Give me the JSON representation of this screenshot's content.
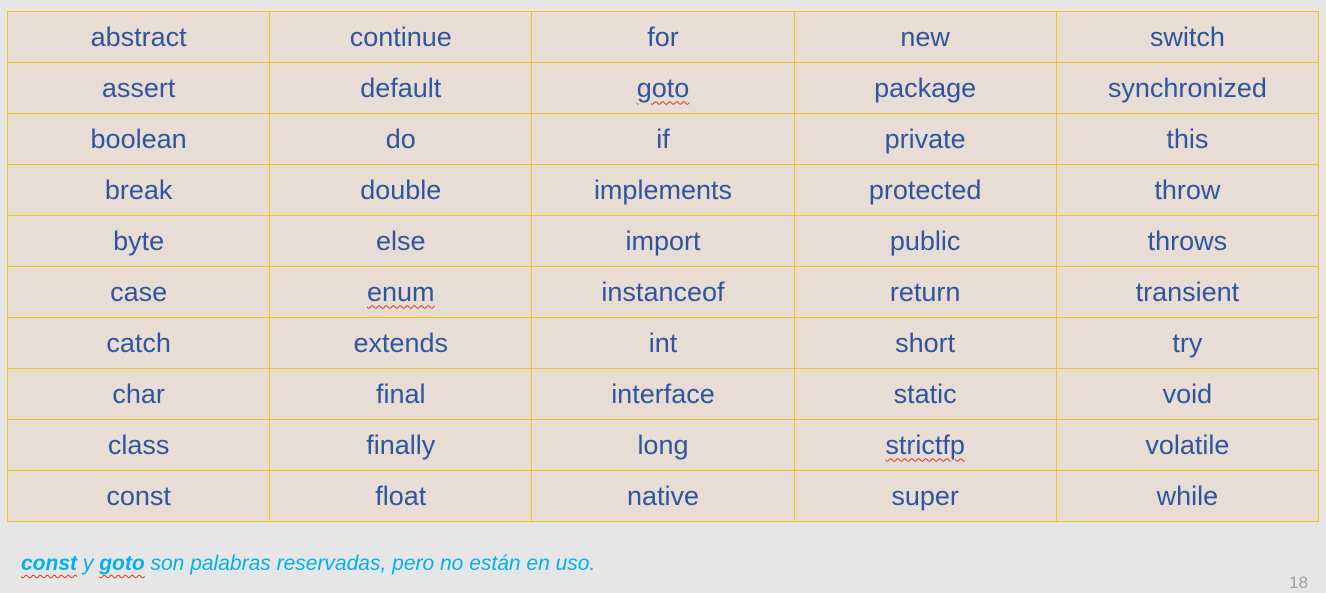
{
  "keywords_table": {
    "rows": [
      [
        "abstract",
        "continue",
        "for",
        "new",
        "switch"
      ],
      [
        "assert",
        "default",
        "goto",
        "package",
        "synchronized"
      ],
      [
        "boolean",
        "do",
        "if",
        "private",
        "this"
      ],
      [
        "break",
        "double",
        "implements",
        "protected",
        "throw"
      ],
      [
        "byte",
        "else",
        "import",
        "public",
        "throws"
      ],
      [
        "case",
        "enum",
        "instanceof",
        "return",
        "transient"
      ],
      [
        "catch",
        "extends",
        "int",
        "short",
        "try"
      ],
      [
        "char",
        "final",
        "interface",
        "static",
        "void"
      ],
      [
        "class",
        "finally",
        "long",
        "strictfp",
        "volatile"
      ],
      [
        "const",
        "float",
        "native",
        "super",
        "while"
      ]
    ],
    "spellcheck_flagged": [
      "goto",
      "enum",
      "strictfp"
    ]
  },
  "footnote": {
    "word1": "const",
    "connector": " y ",
    "word2": "goto",
    "rest": " son palabras reservadas, pero no están en uso."
  },
  "page_number": "18",
  "colors": {
    "background": "#e6e6e6",
    "cell_background": "#e8ddd4",
    "cell_border": "#f0c419",
    "cell_text": "#2f55a0",
    "footnote_text": "#00b0f0",
    "spellcheck_underline": "#e03030"
  }
}
